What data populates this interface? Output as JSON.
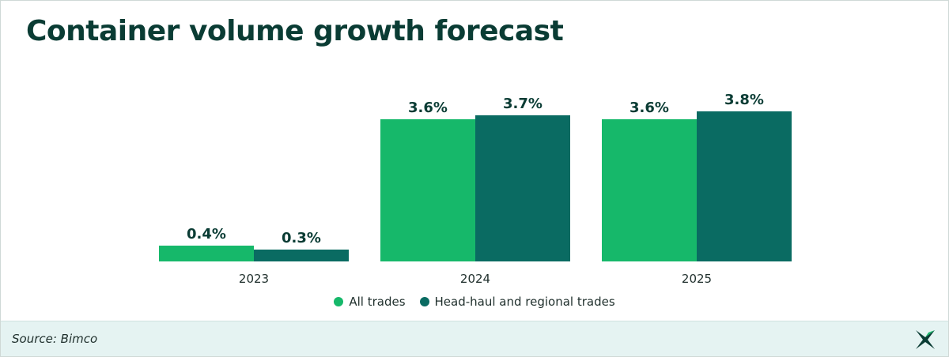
{
  "title": "Container volume growth forecast",
  "chart_data": {
    "type": "bar",
    "categories": [
      "2023",
      "2024",
      "2025"
    ],
    "series": [
      {
        "name": "All trades",
        "color": "#16b86a",
        "values": [
          0.4,
          3.6,
          3.6
        ],
        "labels": [
          "0.4%",
          "3.6%",
          "3.6%"
        ]
      },
      {
        "name": "Head-haul and regional trades",
        "color": "#0a6b62",
        "values": [
          0.3,
          3.7,
          3.8
        ],
        "labels": [
          "0.3%",
          "3.7%",
          "3.8%"
        ]
      }
    ],
    "ylim": [
      0,
      3.8
    ],
    "grid": false,
    "legend_position": "bottom"
  },
  "legend": {
    "items": [
      {
        "label": "All trades",
        "color": "#16b86a"
      },
      {
        "label": "Head-haul and regional trades",
        "color": "#0a6b62"
      }
    ]
  },
  "footer": {
    "source": "Source: Bimco"
  },
  "colors": {
    "title": "#0a3c34",
    "footer_bg": "#e5f3f2",
    "logo": "#0a3c34"
  }
}
